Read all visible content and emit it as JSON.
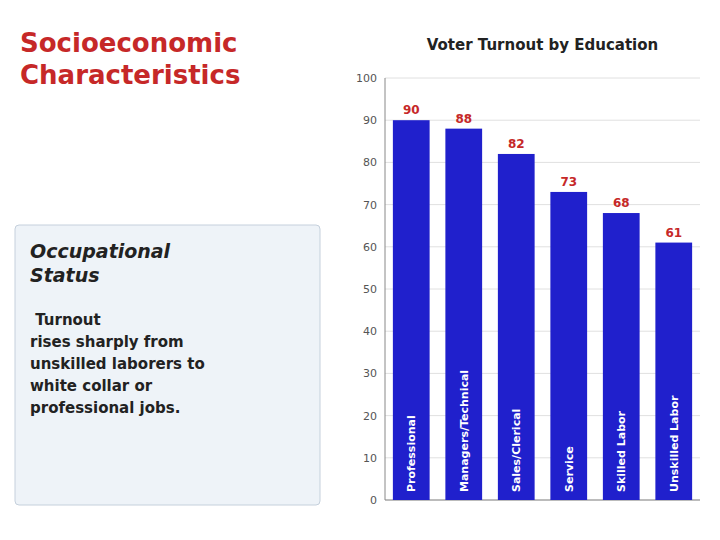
{
  "chart_data": {
    "type": "bar",
    "title": "Voter Turnout by Education",
    "categories": [
      "Professional",
      "Managers/Technical",
      "Sales/Clerical",
      "Service",
      "Skilled Labor",
      "Unskilled Labor"
    ],
    "values": [
      90,
      88,
      82,
      73,
      68,
      61
    ],
    "color": "#2020cc",
    "ylim": [
      0,
      100
    ],
    "yticks": [
      0,
      10,
      20,
      30,
      40,
      50,
      60,
      70,
      80,
      90,
      100
    ],
    "grid": true,
    "data_labels": true,
    "annotations": [
      "Socioeconomic\nCharacteristics",
      "Occupational\nStatus",
      " Turnout\nrises sharply from\nunskilled laborers to\nwhite collar or\nprofessional jobs."
    ]
  }
}
